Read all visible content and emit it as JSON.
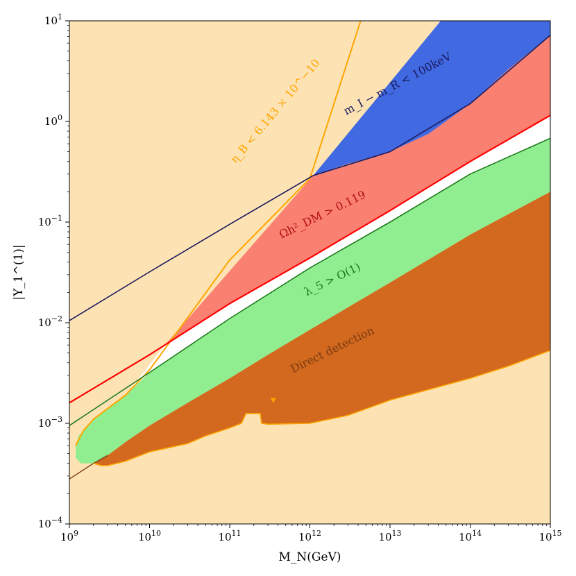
{
  "chart_data": {
    "type": "area",
    "xlabel": "M_N(GeV)",
    "ylabel": "|Y_1^(1)|",
    "x_scale": "log",
    "y_scale": "log",
    "xlim": [
      1000000000.0,
      1000000000000000.0
    ],
    "ylim": [
      0.0001,
      10
    ],
    "grid": false,
    "x_ticks": [
      {
        "value": 1000000000.0,
        "base": "10",
        "exp": "9"
      },
      {
        "value": 10000000000.0,
        "base": "10",
        "exp": "10"
      },
      {
        "value": 100000000000.0,
        "base": "10",
        "exp": "11"
      },
      {
        "value": 1000000000000.0,
        "base": "10",
        "exp": "12"
      },
      {
        "value": 10000000000000.0,
        "base": "10",
        "exp": "13"
      },
      {
        "value": 100000000000000.0,
        "base": "10",
        "exp": "14"
      },
      {
        "value": 1000000000000000.0,
        "base": "10",
        "exp": "15"
      }
    ],
    "y_ticks": [
      {
        "value": 0.0001,
        "base": "10",
        "exp": "−4"
      },
      {
        "value": 0.001,
        "base": "10",
        "exp": "−3"
      },
      {
        "value": 0.01,
        "base": "10",
        "exp": "−2"
      },
      {
        "value": 0.1,
        "base": "10",
        "exp": "−1"
      },
      {
        "value": 1,
        "base": "10",
        "exp": "0"
      },
      {
        "value": 10,
        "base": "10",
        "exp": "1"
      }
    ],
    "colors": {
      "background": "#fde3b3",
      "mass_splitting": "#4169e1",
      "relic_density": "#fa8072",
      "allowed": "#ffffff",
      "lambda5": "#90ee90",
      "direct_detection": "#d2691e",
      "eta_b_line": "#ffa500",
      "mass_line": "#1a1a5e",
      "relic_line": "#ff0000",
      "lambda5_line": "#1e7b1e",
      "dd_line": "#7a3a14"
    },
    "regions": [
      {
        "name": "mass_splitting",
        "label": "m_I − m_R < 100keV",
        "boundary": [
          [
            1100000000000.0,
            0.29
          ],
          [
            43000000000000.0,
            10
          ],
          [
            1000000000000000.0,
            10
          ],
          [
            1000000000000000.0,
            7.2
          ],
          [
            300000000000000.0,
            3.3
          ],
          [
            100000000000000.0,
            1.5
          ],
          [
            30000000000000.0,
            0.75
          ],
          [
            10000000000000.0,
            0.5
          ],
          [
            3000000000000.0,
            0.38
          ],
          [
            1100000000000.0,
            0.29
          ]
        ]
      },
      {
        "name": "relic_density",
        "label": "Ωh²_DM > 0.119",
        "boundary": [
          [
            15000000000.0,
            0.0058
          ],
          [
            1100000000000.0,
            0.29
          ],
          [
            3000000000000.0,
            0.38
          ],
          [
            10000000000000.0,
            0.5
          ],
          [
            30000000000000.0,
            0.75
          ],
          [
            100000000000000.0,
            1.5
          ],
          [
            300000000000000.0,
            3.3
          ],
          [
            1000000000000000.0,
            7.2
          ],
          [
            1000000000000000.0,
            1.15
          ],
          [
            100000000000000.0,
            0.4
          ],
          [
            10000000000000.0,
            0.13
          ],
          [
            1000000000000.0,
            0.044
          ],
          [
            100000000000.0,
            0.0155
          ],
          [
            15000000000.0,
            0.0058
          ]
        ]
      },
      {
        "name": "lambda5",
        "label": "λ_5 > O(1)",
        "boundary": [
          [
            1300000000.0,
            0.00075
          ],
          [
            1500000000.0,
            0.00085
          ],
          [
            2000000000.0,
            0.0011
          ],
          [
            5000000000.0,
            0.0019
          ],
          [
            10000000000.0,
            0.0032
          ],
          [
            100000000000.0,
            0.011
          ],
          [
            1000000000000.0,
            0.035
          ],
          [
            10000000000000.0,
            0.1
          ],
          [
            100000000000000.0,
            0.3
          ],
          [
            1000000000000000.0,
            0.68
          ],
          [
            1000000000000000.0,
            0.2
          ],
          [
            100000000000000.0,
            0.075
          ],
          [
            10000000000000.0,
            0.025
          ],
          [
            1000000000000.0,
            0.0085
          ],
          [
            300000000000.0,
            0.0048
          ],
          [
            100000000000.0,
            0.0028
          ],
          [
            30000000000.0,
            0.0016
          ],
          [
            10000000000.0,
            0.00095
          ],
          [
            5000000000.0,
            0.00065
          ],
          [
            3000000000.0,
            0.00048
          ],
          [
            2000000000.0,
            0.0004
          ],
          [
            1400000000.0,
            0.0004
          ],
          [
            1200000000.0,
            0.00045
          ],
          [
            1200000000.0,
            0.0006
          ],
          [
            1300000000.0,
            0.00075
          ]
        ]
      },
      {
        "name": "direct_detection",
        "label": "Direct detection",
        "boundary": [
          [
            2000000000.0,
            0.0004
          ],
          [
            3000000000.0,
            0.00048
          ],
          [
            5000000000.0,
            0.00065
          ],
          [
            10000000000.0,
            0.00095
          ],
          [
            30000000000.0,
            0.0016
          ],
          [
            100000000000.0,
            0.0028
          ],
          [
            300000000000.0,
            0.0048
          ],
          [
            1000000000000.0,
            0.0085
          ],
          [
            10000000000000.0,
            0.025
          ],
          [
            100000000000000.0,
            0.075
          ],
          [
            1000000000000000.0,
            0.2
          ],
          [
            1000000000000000.0,
            0.0053
          ],
          [
            300000000000000.0,
            0.0037
          ],
          [
            100000000000000.0,
            0.0028
          ],
          [
            10000000000000.0,
            0.0017
          ],
          [
            3000000000000.0,
            0.0012
          ],
          [
            1000000000000.0,
            0.001
          ],
          [
            300000000000.0,
            0.00098
          ],
          [
            250000000000.0,
            0.001
          ],
          [
            240000000000.0,
            0.00125
          ],
          [
            160000000000.0,
            0.00125
          ],
          [
            140000000000.0,
            0.001
          ],
          [
            100000000000.0,
            0.0009
          ],
          [
            50000000000.0,
            0.00075
          ],
          [
            30000000000.0,
            0.00063
          ],
          [
            10000000000.0,
            0.00052
          ],
          [
            5000000000.0,
            0.00042
          ],
          [
            3000000000.0,
            0.00038
          ],
          [
            2500000000.0,
            0.00038
          ],
          [
            2000000000.0,
            0.0004
          ]
        ]
      }
    ],
    "lines": [
      {
        "name": "eta_b_bound",
        "label": "η_B < 6.143 × 10^−10",
        "x": [
          1200000000.0,
          1500000000.0,
          2000000000.0,
          5000000000.0,
          10000000000.0,
          100000000000.0,
          1000000000000.0,
          4300000000000.0
        ],
        "y": [
          0.0006,
          0.00085,
          0.0011,
          0.0019,
          0.0034,
          0.042,
          0.27,
          10
        ]
      },
      {
        "name": "mass_splitting_bound",
        "x": [
          1000000000.0,
          10000000000.0,
          100000000000.0,
          1100000000000.0,
          10000000000000.0,
          100000000000000.0,
          1000000000000000.0
        ],
        "y": [
          0.0105,
          0.032,
          0.095,
          0.29,
          0.5,
          1.5,
          7.2
        ]
      },
      {
        "name": "relic_bound",
        "x": [
          1000000000.0,
          10000000000.0,
          100000000000.0,
          1000000000000.0,
          10000000000000.0,
          100000000000000.0,
          1000000000000000.0
        ],
        "y": [
          0.0016,
          0.0048,
          0.0155,
          0.044,
          0.13,
          0.4,
          1.15
        ]
      },
      {
        "name": "lambda5_bound",
        "x": [
          1000000000.0,
          10000000000.0,
          100000000000.0,
          1000000000000.0,
          10000000000000.0,
          100000000000000.0,
          1000000000000000.0
        ],
        "y": [
          0.00095,
          0.0032,
          0.011,
          0.035,
          0.1,
          0.3,
          0.68
        ]
      },
      {
        "name": "dd_bound",
        "x": [
          1000000000.0,
          2000000000.0,
          3000000000.0
        ],
        "y": [
          0.00028,
          0.0004,
          0.00048
        ]
      }
    ],
    "annotations": [
      {
        "text": "η_B < 6.143 × 10^−10",
        "x": 400000000000.0,
        "y": 1.2,
        "rotation": -50,
        "color": "#ffa500"
      },
      {
        "text": "m_I − m_R < 100keV",
        "x": 13000000000000.0,
        "y": 2.2,
        "rotation": -28,
        "color": "#1a1a5e"
      },
      {
        "text": "Ωh²_DM > 0.119",
        "x": 1500000000000.0,
        "y": 0.11,
        "rotation": -26,
        "color": "#b01010"
      },
      {
        "text": "λ_5 > O(1)",
        "x": 2000000000000.0,
        "y": 0.025,
        "rotation": -26,
        "color": "#1e7b1e"
      },
      {
        "text": "Direct detection",
        "x": 2000000000000.0,
        "y": 0.005,
        "rotation": -26,
        "color": "#7a3a14"
      }
    ],
    "marker": {
      "x": 350000000000.0,
      "y": 0.0017,
      "color": "#ffa500"
    }
  }
}
